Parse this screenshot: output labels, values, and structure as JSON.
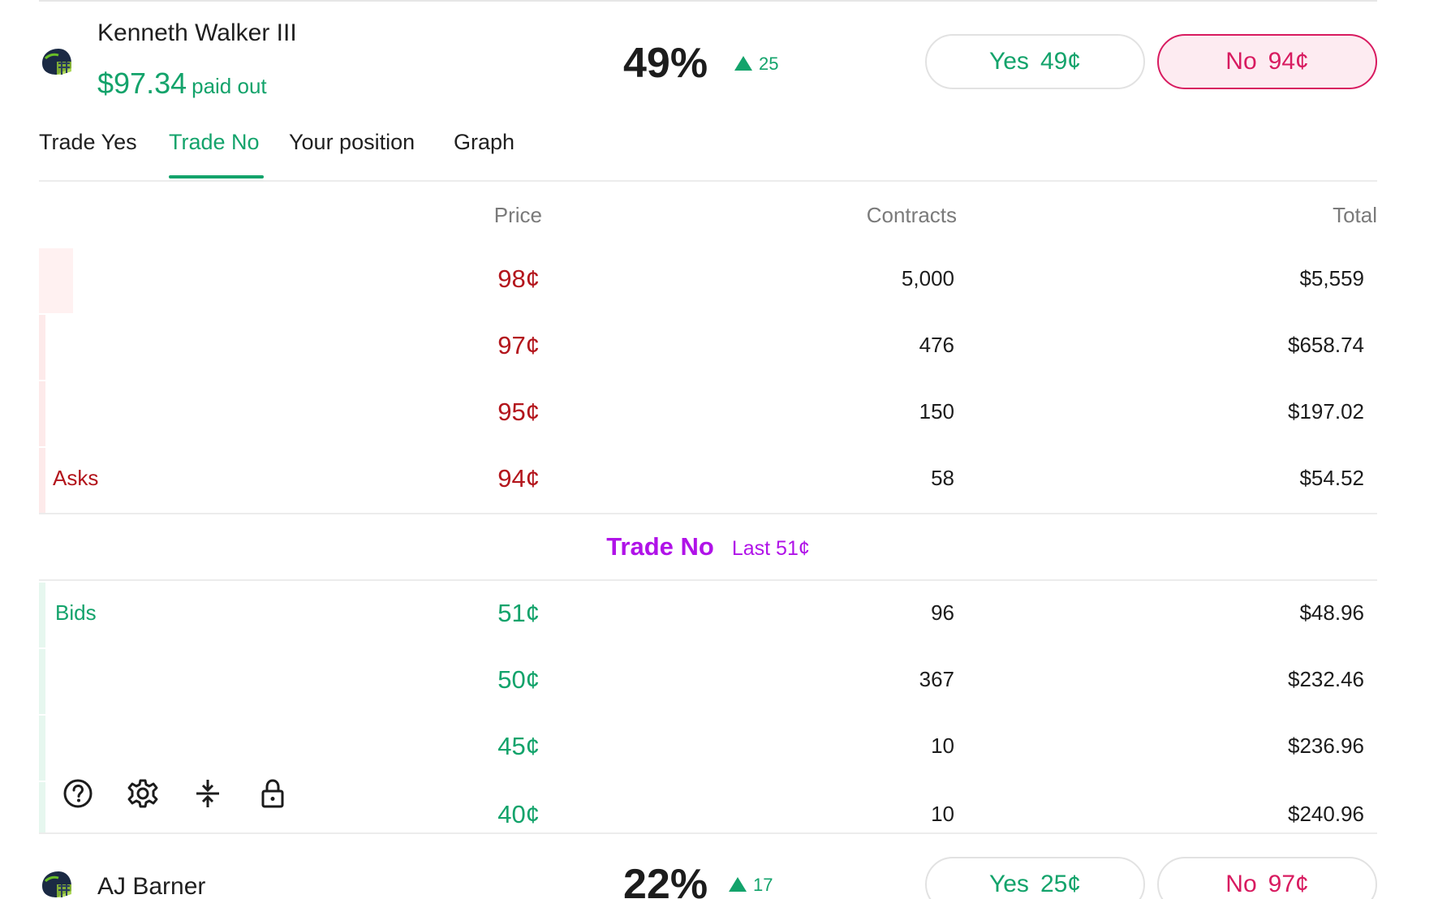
{
  "colors": {
    "green": "#13a36b",
    "ask_red": "#b3151c",
    "no_pink": "#d81b60",
    "purple": "#b012e8"
  },
  "markets": [
    {
      "name": "Kenneth Walker III",
      "payout_amount": "$97.34",
      "payout_label": "paid out",
      "percent": "49%",
      "change": "25",
      "yes_label": "Yes",
      "yes_price": "49¢",
      "no_label": "No",
      "no_price": "94¢",
      "icon": "seahawks-helmet-icon"
    },
    {
      "name": "AJ Barner",
      "percent": "22%",
      "change": "17",
      "yes_label": "Yes",
      "yes_price": "25¢",
      "no_label": "No",
      "no_price": "97¢",
      "icon": "seahawks-helmet-icon"
    }
  ],
  "tabs": [
    {
      "label": "Trade Yes",
      "active": false
    },
    {
      "label": "Trade No",
      "active": true
    },
    {
      "label": "Your position",
      "active": false
    },
    {
      "label": "Graph",
      "active": false
    }
  ],
  "orderbook": {
    "headers": {
      "price": "Price",
      "contracts": "Contracts",
      "total": "Total"
    },
    "asks_label": "Asks",
    "bids_label": "Bids",
    "asks": [
      {
        "price": "98¢",
        "contracts": "5,000",
        "total": "$5,559",
        "depth": 0.025
      },
      {
        "price": "97¢",
        "contracts": "476",
        "total": "$658.74",
        "depth": 0.005
      },
      {
        "price": "95¢",
        "contracts": "150",
        "total": "$197.02",
        "depth": 0.005
      },
      {
        "price": "94¢",
        "contracts": "58",
        "total": "$54.52",
        "depth": 0.005
      }
    ],
    "spread_title": "Trade No",
    "spread_last": "Last 51¢",
    "bids": [
      {
        "price": "51¢",
        "contracts": "96",
        "total": "$48.96",
        "depth": 0.005
      },
      {
        "price": "50¢",
        "contracts": "367",
        "total": "$232.46",
        "depth": 0.005
      },
      {
        "price": "45¢",
        "contracts": "10",
        "total": "$236.96",
        "depth": 0.005
      },
      {
        "price": "40¢",
        "contracts": "10",
        "total": "$240.96",
        "depth": 0.005
      }
    ]
  },
  "toolbar_icons": [
    "help-icon",
    "settings-gear-icon",
    "compress-icon",
    "lock-icon"
  ]
}
